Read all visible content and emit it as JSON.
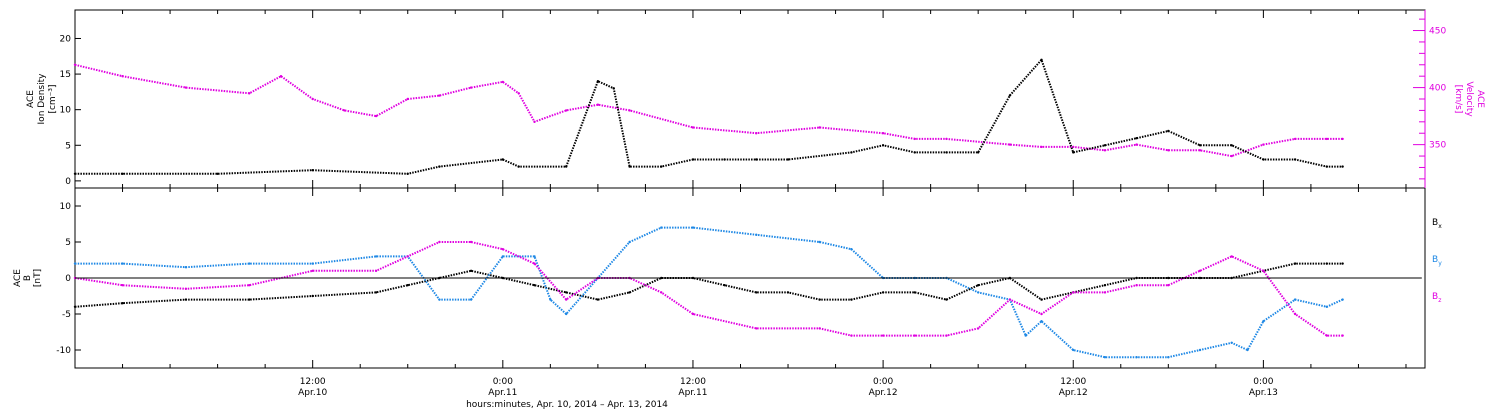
{
  "chart_data": [
    {
      "type": "scatter",
      "panel": "top",
      "left_axis": {
        "label_lines": [
          "ACE",
          "Ion Density",
          "[cm⁻³]"
        ],
        "ylim": [
          -1,
          24
        ],
        "ticks": [
          0,
          5,
          10,
          15,
          20
        ]
      },
      "right_axis": {
        "label_lines": [
          "ACE",
          "Velocity",
          "[km/s]"
        ],
        "ylim": [
          312,
          468
        ],
        "ticks": [
          350,
          400,
          450
        ],
        "color": "#e000e0"
      },
      "series": [
        {
          "name": "",
          "axis": "left",
          "color": "#000000",
          "x": [
            -3,
            0,
            6,
            12,
            18,
            20,
            24,
            25,
            28,
            30,
            31,
            32,
            34,
            36,
            38,
            40,
            42,
            46,
            48,
            50,
            52,
            54,
            56,
            58,
            60,
            62,
            64,
            66,
            68,
            70,
            72,
            74,
            76,
            77
          ],
          "y": [
            1,
            1,
            1,
            1.5,
            1,
            2,
            3,
            2,
            2,
            14,
            13,
            2,
            2,
            3,
            3,
            3,
            3,
            4,
            5,
            4,
            4,
            4,
            12,
            17,
            4,
            5,
            6,
            7,
            5,
            5,
            3,
            3,
            2,
            2
          ]
        },
        {
          "name": "",
          "axis": "right",
          "color": "#e000e0",
          "x": [
            -3,
            0,
            4,
            8,
            10,
            12,
            14,
            16,
            18,
            20,
            22,
            24,
            25,
            26,
            28,
            30,
            32,
            36,
            40,
            44,
            48,
            50,
            52,
            56,
            58,
            60,
            62,
            64,
            66,
            68,
            70,
            72,
            74,
            76,
            77
          ],
          "y": [
            420,
            410,
            400,
            395,
            410,
            390,
            380,
            375,
            390,
            393,
            400,
            405,
            395,
            370,
            380,
            385,
            380,
            365,
            360,
            365,
            360,
            355,
            355,
            350,
            348,
            348,
            345,
            350,
            345,
            345,
            340,
            350,
            355,
            355,
            355
          ]
        }
      ]
    },
    {
      "type": "scatter",
      "panel": "bottom",
      "left_axis": {
        "label_lines": [
          "ACE",
          "B",
          "[nT]"
        ],
        "ylim": [
          -12.5,
          12.5
        ],
        "ticks": [
          -10,
          -5,
          0,
          5,
          10
        ]
      },
      "legend": [
        {
          "label": "B",
          "sub": "x",
          "color": "#000000"
        },
        {
          "label": "B",
          "sub": "y",
          "color": "#1e88e5"
        },
        {
          "label": "B",
          "sub": "z",
          "color": "#e000e0"
        }
      ],
      "series": [
        {
          "name": "Bx",
          "color": "#000000",
          "x": [
            -3,
            0,
            4,
            8,
            12,
            16,
            18,
            20,
            22,
            24,
            26,
            28,
            30,
            32,
            34,
            36,
            38,
            40,
            42,
            44,
            46,
            48,
            50,
            52,
            54,
            56,
            58,
            60,
            62,
            64,
            66,
            68,
            70,
            72,
            74,
            76,
            77
          ],
          "y": [
            -4,
            -3.5,
            -3,
            -3,
            -2.5,
            -2,
            -1,
            0,
            1,
            0,
            -1,
            -2,
            -3,
            -2,
            0,
            0,
            -1,
            -2,
            -2,
            -3,
            -3,
            -2,
            -2,
            -3,
            -1,
            0,
            -3,
            -2,
            -1,
            0,
            0,
            0,
            0,
            1,
            2,
            2,
            2
          ]
        },
        {
          "name": "By",
          "color": "#1e88e5",
          "x": [
            -3,
            0,
            4,
            8,
            12,
            16,
            18,
            20,
            22,
            24,
            26,
            27,
            28,
            30,
            32,
            34,
            36,
            40,
            44,
            46,
            48,
            50,
            52,
            54,
            56,
            57,
            58,
            60,
            62,
            64,
            66,
            68,
            70,
            71,
            72,
            74,
            76,
            77
          ],
          "y": [
            2,
            2,
            1.5,
            2,
            2,
            3,
            3,
            -3,
            -3,
            3,
            3,
            -3,
            -5,
            0,
            5,
            7,
            7,
            6,
            5,
            4,
            0,
            0,
            0,
            -2,
            -3,
            -8,
            -6,
            -10,
            -11,
            -11,
            -11,
            -10,
            -9,
            -10,
            -6,
            -3,
            -4,
            -3
          ]
        },
        {
          "name": "Bz",
          "color": "#e000e0",
          "x": [
            -3,
            0,
            4,
            8,
            12,
            16,
            18,
            20,
            22,
            24,
            26,
            28,
            30,
            32,
            34,
            36,
            40,
            44,
            46,
            48,
            50,
            52,
            54,
            56,
            58,
            60,
            62,
            64,
            66,
            68,
            70,
            72,
            74,
            76,
            77
          ],
          "y": [
            0,
            -1,
            -1.5,
            -1,
            1,
            1,
            3,
            5,
            5,
            4,
            2,
            -3,
            0,
            0,
            -2,
            -5,
            -7,
            -7,
            -8,
            -8,
            -8,
            -8,
            -7,
            -3,
            -5,
            -2,
            -2,
            -1,
            -1,
            1,
            3,
            1,
            -5,
            -8,
            -8
          ]
        },
        {
          "name": "zero-line",
          "color": "#000000",
          "x": [
            -3,
            82
          ],
          "y": [
            0,
            0
          ]
        }
      ]
    }
  ],
  "x_axis": {
    "range_hours": [
      -3,
      82.2
    ],
    "ticks": [
      {
        "hours": 12,
        "time": "12:00",
        "date": "Apr.10"
      },
      {
        "hours": 24,
        "time": "0:00",
        "date": "Apr.11"
      },
      {
        "hours": 36,
        "time": "12:00",
        "date": "Apr.11"
      },
      {
        "hours": 48,
        "time": "0:00",
        "date": "Apr.12"
      },
      {
        "hours": 60,
        "time": "12:00",
        "date": "Apr.12"
      },
      {
        "hours": 72,
        "time": "0:00",
        "date": "Apr.13"
      }
    ],
    "minor_every_hours": 3,
    "label": "hours:minutes, Apr. 10, 2014 – Apr. 13, 2014"
  }
}
